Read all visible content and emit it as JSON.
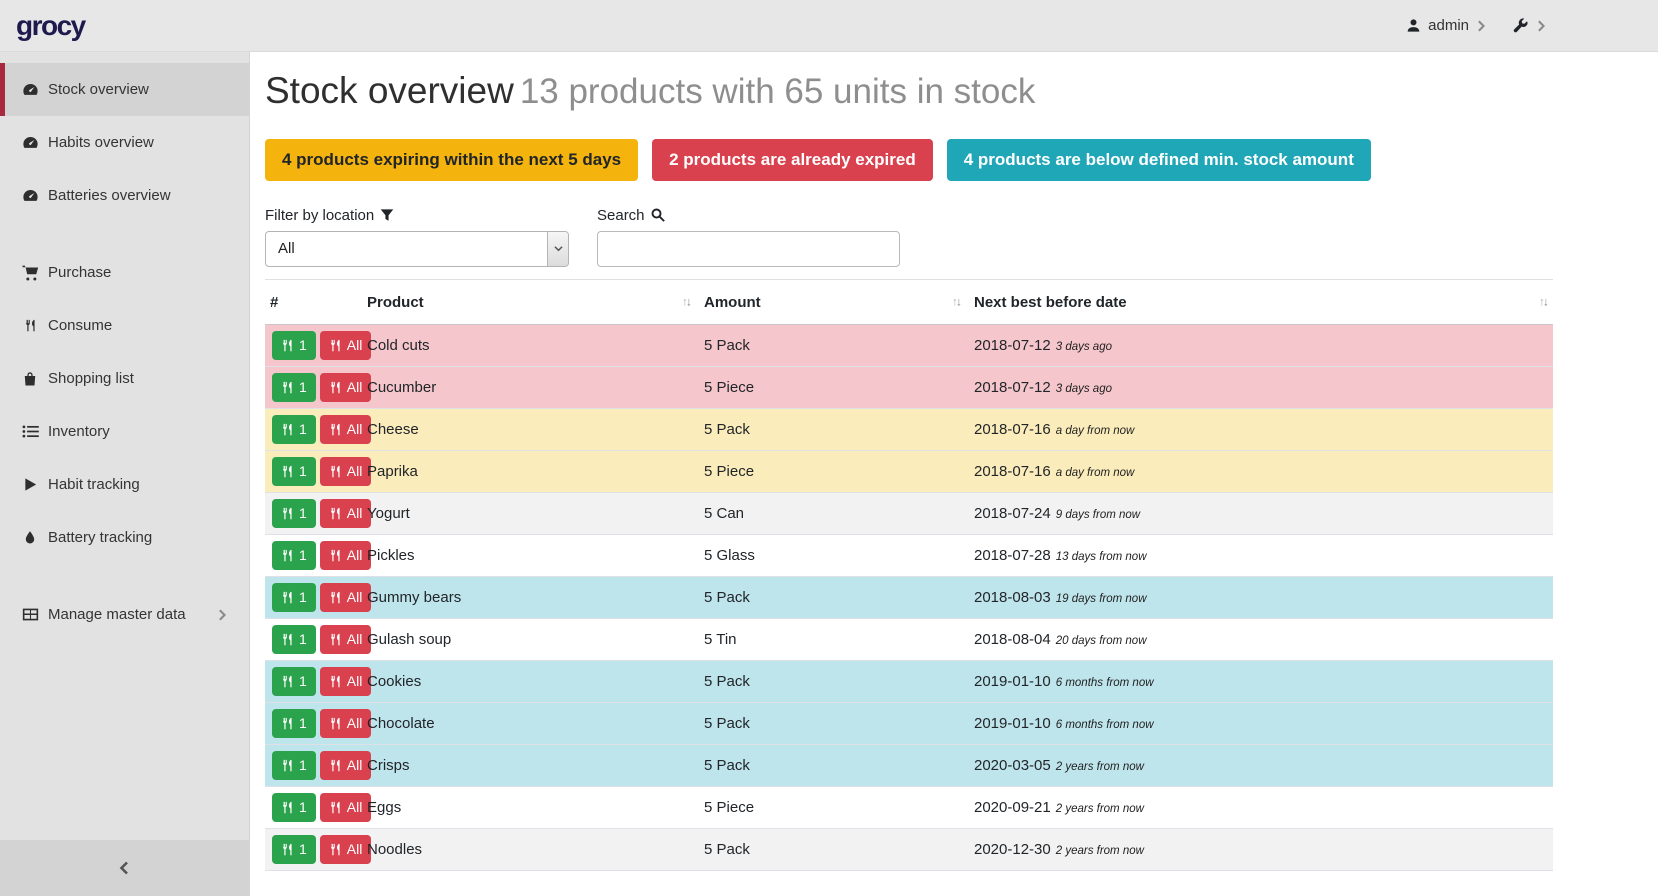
{
  "brand": {
    "logo_text": "grocy"
  },
  "topbar": {
    "user_label": "admin",
    "user_icon": "user-icon",
    "settings_icon": "wrench-icon"
  },
  "sidebar": {
    "items": [
      {
        "label": "Stock overview",
        "icon": "tachometer-icon",
        "active": true,
        "group_start": false,
        "has_chevron": false
      },
      {
        "label": "Habits overview",
        "icon": "tachometer-icon",
        "active": false,
        "group_start": false,
        "has_chevron": false
      },
      {
        "label": "Batteries overview",
        "icon": "tachometer-icon",
        "active": false,
        "group_start": false,
        "has_chevron": false
      },
      {
        "label": "Purchase",
        "icon": "cart-icon",
        "active": false,
        "group_start": true,
        "has_chevron": false
      },
      {
        "label": "Consume",
        "icon": "utensils-icon",
        "active": false,
        "group_start": false,
        "has_chevron": false
      },
      {
        "label": "Shopping list",
        "icon": "bag-icon",
        "active": false,
        "group_start": false,
        "has_chevron": false
      },
      {
        "label": "Inventory",
        "icon": "list-icon",
        "active": false,
        "group_start": false,
        "has_chevron": false
      },
      {
        "label": "Habit tracking",
        "icon": "play-icon",
        "active": false,
        "group_start": false,
        "has_chevron": false
      },
      {
        "label": "Battery tracking",
        "icon": "droplet-icon",
        "active": false,
        "group_start": false,
        "has_chevron": false
      },
      {
        "label": "Manage master data",
        "icon": "grid-icon",
        "active": false,
        "group_start": true,
        "has_chevron": true
      }
    ],
    "collapse_icon": "chevron-left-icon"
  },
  "page": {
    "title": "Stock overview",
    "subtitle": "13 products with 65 units in stock"
  },
  "badges": [
    {
      "text": "4 products expiring within the next 5 days",
      "type": "warning"
    },
    {
      "text": "2 products are already expired",
      "type": "danger"
    },
    {
      "text": "4 products are below defined min. stock amount",
      "type": "info"
    }
  ],
  "filters": {
    "location_label": "Filter by location",
    "location_icon": "filter-icon",
    "location_value": "All",
    "search_label": "Search",
    "search_icon": "search-icon",
    "search_value": "",
    "search_placeholder": ""
  },
  "table": {
    "headers": [
      {
        "label": "#",
        "sortable": false
      },
      {
        "label": "Product",
        "sortable": true
      },
      {
        "label": "Amount",
        "sortable": true
      },
      {
        "label": "Next best before date",
        "sortable": true
      }
    ],
    "row_buttons": {
      "consume_one": "1",
      "consume_all": "All",
      "icon": "utensils-icon"
    },
    "rows": [
      {
        "product": "Cold cuts",
        "amount": "5 Pack",
        "best_before": "2018-07-12",
        "relative": "3 days ago",
        "status": "danger"
      },
      {
        "product": "Cucumber",
        "amount": "5 Piece",
        "best_before": "2018-07-12",
        "relative": "3 days ago",
        "status": "danger"
      },
      {
        "product": "Cheese",
        "amount": "5 Pack",
        "best_before": "2018-07-16",
        "relative": "a day from now",
        "status": "warning"
      },
      {
        "product": "Paprika",
        "amount": "5 Piece",
        "best_before": "2018-07-16",
        "relative": "a day from now",
        "status": "warning"
      },
      {
        "product": "Yogurt",
        "amount": "5 Can",
        "best_before": "2018-07-24",
        "relative": "9 days from now",
        "status": "none"
      },
      {
        "product": "Pickles",
        "amount": "5 Glass",
        "best_before": "2018-07-28",
        "relative": "13 days from now",
        "status": "none"
      },
      {
        "product": "Gummy bears",
        "amount": "5 Pack",
        "best_before": "2018-08-03",
        "relative": "19 days from now",
        "status": "info"
      },
      {
        "product": "Gulash soup",
        "amount": "5 Tin",
        "best_before": "2018-08-04",
        "relative": "20 days from now",
        "status": "none"
      },
      {
        "product": "Cookies",
        "amount": "5 Pack",
        "best_before": "2019-01-10",
        "relative": "6 months from now",
        "status": "info"
      },
      {
        "product": "Chocolate",
        "amount": "5 Pack",
        "best_before": "2019-01-10",
        "relative": "6 months from now",
        "status": "info"
      },
      {
        "product": "Crisps",
        "amount": "5 Pack",
        "best_before": "2020-03-05",
        "relative": "2 years from now",
        "status": "info"
      },
      {
        "product": "Eggs",
        "amount": "5 Piece",
        "best_before": "2020-09-21",
        "relative": "2 years from now",
        "status": "none"
      },
      {
        "product": "Noodles",
        "amount": "5 Pack",
        "best_before": "2020-12-30",
        "relative": "2 years from now",
        "status": "none"
      }
    ]
  },
  "colors": {
    "warning": "#f4b40d",
    "danger": "#d9414f",
    "info": "#20a7b7",
    "success": "#2ba24c",
    "row-danger": "#f5c6cb",
    "row-warning": "#fbecbb",
    "row-info": "#bfe5ec",
    "accent": "#a8293f",
    "brand": "#1f1a4e"
  }
}
